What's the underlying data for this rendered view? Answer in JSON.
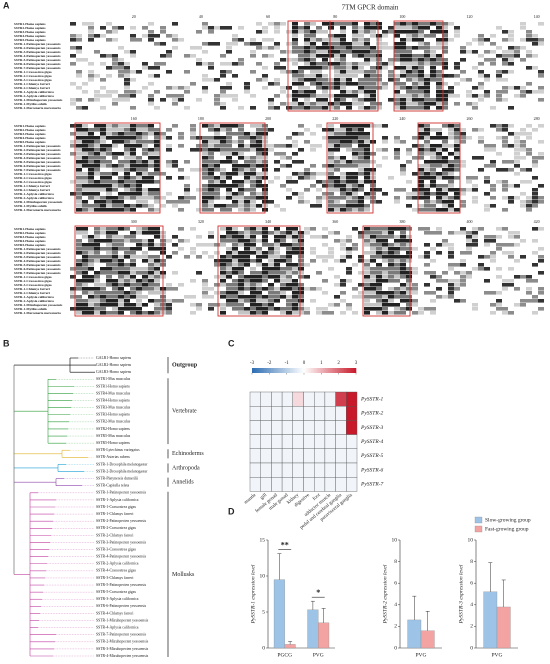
{
  "figure": {
    "A": {
      "label": "A",
      "title": "7TM GPCR domain",
      "ruler": [
        [
          20,
          40,
          60,
          80,
          100,
          120,
          140
        ],
        [
          160,
          180,
          200,
          220,
          240,
          260,
          280
        ],
        [
          300,
          320,
          340,
          360,
          380,
          400,
          420
        ]
      ],
      "sequences": [
        "SSTR1-Homo sapiens",
        "SSTR2-Homo sapiens",
        "SSTR3-Homo sapiens",
        "SSTR4-Homo sapiens",
        "SSTR5-Homo sapiens",
        "SSTR-1-Patinopecten yessoensis",
        "SSTR-2-Patinopecten yessoensis",
        "SSTR-3-Patinopecten yessoensis",
        "SSTR-4-Patinopecten yessoensis",
        "SSTR-5-Patinopecten yessoensis",
        "SSTR-6-Patinopecten yessoensis",
        "SSTR-7-Patinopecten yessoensis",
        "SSTR-1-Crassostrea gigas",
        "SSTR-2-Crassostrea gigas",
        "SSTR-3-Crassostrea gigas",
        "SSTR-1-Chlamys farreri",
        "SSTR-2-Chlamys farreri",
        "SSTR-1-Aplysia californica",
        "SSTR-2-Aplysia californica",
        "SSTR-1-Mizuhopecten yessoensis",
        "SSTR-1-Mytilus edulis",
        "SSTR-1-Mercenaria mercenaria"
      ]
    },
    "B": {
      "label": "B",
      "groups": [
        {
          "name": "Outgroup",
          "color": "#000000",
          "leaves": [
            "GALR1-Homo sapiens",
            "GALR2-Homo sapiens",
            "GALR3-Homo sapiens"
          ]
        },
        {
          "name": "Vertebrate",
          "color": "#2e9e3a",
          "leaves": [
            "SSTR1-Mus musculus",
            "SSTR1-Homo sapiens",
            "SSTR4-Mus musculus",
            "SSTR4-Homo sapiens",
            "SSTR3-Mus musculus",
            "SSTR3-Homo sapiens",
            "SSTR2-Mus musculus",
            "SSTR2-Homo sapiens",
            "SSTR5-Mus musculus",
            "SSTR5-Homo sapiens"
          ]
        },
        {
          "name": "Echinoderms",
          "color": "#e2b22a",
          "leaves": [
            "SSTR-Lytechinus variegatus",
            "SSTR-Asterias rubens"
          ]
        },
        {
          "name": "Arthropoda",
          "color": "#1b9fd6",
          "leaves": [
            "SSTR-1-Drosophila melanogaster",
            "SSTR-2-Drosophila melanogaster"
          ]
        },
        {
          "name": "Annelids",
          "color": "#8e44ad",
          "leaves": [
            "SSTR-Platynereis dumerilii",
            "SSTR-Capitella teleta"
          ]
        },
        {
          "name": "Mollusks",
          "color": "#c03ca0",
          "leaves": [
            "SSTR-1-Patinopecten yessoensis",
            "SSTR-1-Aplysia californica",
            "SSTR-1-Crassostrea gigas",
            "SSTR-1-Chlamys farreri",
            "SSTR-2-Patinopecten yessoensis",
            "SSTR-2-Crassostrea gigas",
            "SSTR-2-Chlamys farreri",
            "SSTR-3-Patinopecten yessoensis",
            "SSTR-3-Crassostrea gigas",
            "SSTR-4-Patinopecten yessoensis",
            "SSTR-2-Aplysia californica",
            "SSTR-4-Crassostrea gigas",
            "SSTR-3-Chlamys farreri",
            "SSTR-5-Patinopecten yessoensis",
            "SSTR-5-Crassostrea gigas",
            "SSTR-3-Aplysia californica",
            "SSTR-6-Patinopecten yessoensis",
            "SSTR-4-Chlamys farreri",
            "SSTR-1-Mizuhopecten yessoensis",
            "SSTR-4-Aplysia californica",
            "SSTR-7-Patinopecten yessoensis",
            "SSTR-2-Mizuhopecten yessoensis",
            "SSTR-3-Mizuhopecten yessoensis",
            "SSTR-4-Mizuhopecten yessoensis"
          ]
        }
      ]
    },
    "C": {
      "label": "C"
    },
    "D": {
      "label": "D"
    }
  },
  "chart_data": [
    {
      "type": "heatmap",
      "x": [
        "mantle",
        "gill",
        "female gonad",
        "male gonad",
        "kidney",
        "digestive",
        "foot",
        "adductor muscle",
        "pedal and cerebral ganglia",
        "paravisceral ganglia"
      ],
      "y": [
        "PySSTR-1",
        "PySSTR-2",
        "PySSTR-3",
        "PySSTR-4",
        "PySSTR-5",
        "PySSTR-6",
        "PySSTR-7"
      ],
      "z": [
        [
          -0.2,
          -0.2,
          -0.2,
          -0.2,
          0.5,
          -0.2,
          -0.2,
          -0.2,
          2.5,
          3
        ],
        [
          -0.2,
          -0.2,
          -0.2,
          -0.2,
          -0.2,
          -0.2,
          -0.2,
          -0.2,
          -0.2,
          3
        ],
        [
          -0.2,
          -0.2,
          -0.2,
          -0.2,
          -0.2,
          -0.2,
          -0.2,
          -0.2,
          -0.2,
          3
        ],
        [
          -0.2,
          -0.2,
          -0.2,
          -0.2,
          -0.2,
          -0.2,
          -0.2,
          -0.2,
          -0.2,
          -0.2
        ],
        [
          -0.2,
          -0.2,
          -0.2,
          -0.2,
          -0.2,
          -0.2,
          -0.2,
          -0.2,
          -0.2,
          -0.2
        ],
        [
          -0.2,
          -0.2,
          -0.2,
          -0.2,
          -0.2,
          -0.2,
          -0.2,
          -0.2,
          -0.2,
          -0.2
        ],
        [
          -0.2,
          -0.2,
          -0.2,
          -0.2,
          -0.2,
          -0.2,
          -0.2,
          -0.2,
          -0.2,
          -0.2
        ]
      ],
      "zlim": [
        -3,
        3
      ],
      "zticks": [
        -3,
        -2,
        -1,
        0,
        1,
        2,
        3
      ],
      "colors": [
        "#2c6db3",
        "#ffffff",
        "#c8192a"
      ]
    },
    {
      "type": "bar",
      "ylabel": "PySSTR-1 expression level",
      "categories": [
        "PGCG",
        "PVG"
      ],
      "series": [
        {
          "name": "Slow-growing group",
          "color": "#9dc3e6",
          "values": [
            9.5,
            5.3
          ],
          "errors": [
            3.6,
            1.2
          ]
        },
        {
          "name": "Fast-growing group",
          "color": "#f4a3a3",
          "values": [
            0.5,
            3.5
          ],
          "errors": [
            0.4,
            2.0
          ]
        }
      ],
      "ylim": [
        0,
        15
      ],
      "yticks": [
        0,
        5,
        10,
        15
      ],
      "annotations": [
        "**",
        "*"
      ]
    },
    {
      "type": "bar",
      "ylabel": "PySSTR-2 expression level",
      "categories": [
        "PVG"
      ],
      "series": [
        {
          "name": "Slow-growing group",
          "color": "#9dc3e6",
          "values": [
            2.6
          ],
          "errors": [
            2.2
          ]
        },
        {
          "name": "Fast-growing group",
          "color": "#f4a3a3",
          "values": [
            1.6
          ],
          "errors": [
            1.8
          ]
        }
      ],
      "ylim": [
        0,
        10
      ],
      "yticks": [
        0,
        2,
        4,
        6,
        8,
        10
      ]
    },
    {
      "type": "bar",
      "ylabel": "PySSTR-3 expression level",
      "categories": [
        "PVG"
      ],
      "series": [
        {
          "name": "Slow-growing group",
          "color": "#9dc3e6",
          "values": [
            5.2
          ],
          "errors": [
            2.7
          ]
        },
        {
          "name": "Fast-growing group",
          "color": "#f4a3a3",
          "values": [
            3.8
          ],
          "errors": [
            2.5
          ]
        }
      ],
      "ylim": [
        0,
        10
      ],
      "yticks": [
        0,
        2,
        4,
        6,
        8,
        10
      ]
    }
  ]
}
